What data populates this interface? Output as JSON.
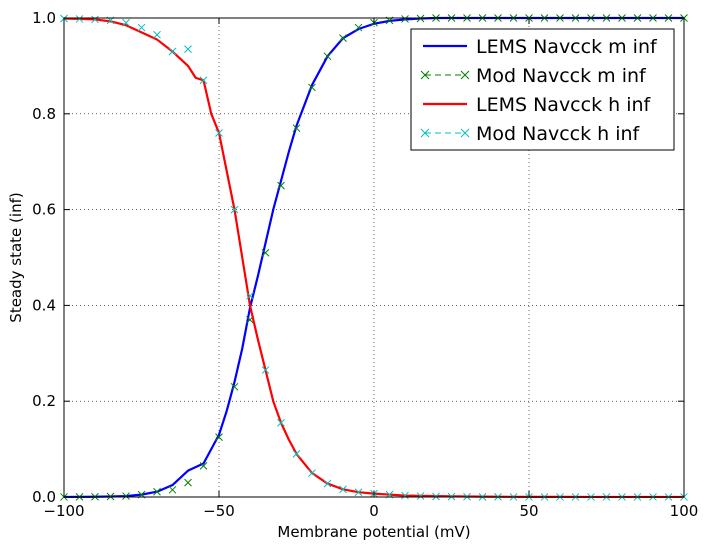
{
  "chart_data": {
    "type": "line",
    "xlabel": "Membrane potential (mV)",
    "ylabel": "Steady state (inf)",
    "xlim": [
      -100,
      100
    ],
    "ylim": [
      0,
      1
    ],
    "xticks": [
      -100,
      -50,
      0,
      50,
      100
    ],
    "xtick_labels": [
      "−100",
      "−50",
      "0",
      "50",
      "100"
    ],
    "yticks": [
      0,
      0.2,
      0.4,
      0.6,
      0.8,
      1.0
    ],
    "ytick_labels": [
      "0.0",
      "0.2",
      "0.4",
      "0.6",
      "0.8",
      "1.0"
    ],
    "grid": true,
    "legend_position": "top-right",
    "series": [
      {
        "name": "LEMS Navcck m inf",
        "style": "line",
        "color": "#0000ff",
        "x": [
          -100,
          -95,
          -90,
          -85,
          -80,
          -75,
          -70,
          -65,
          -60,
          -55,
          -50,
          -47.5,
          -45,
          -42.5,
          -40,
          -37.5,
          -35,
          -32.5,
          -30,
          -27.5,
          -25,
          -20,
          -15,
          -10,
          -5,
          0,
          5,
          10,
          15,
          20,
          30,
          40,
          50,
          60,
          70,
          80,
          90,
          100
        ],
        "y": [
          0.0001,
          0.0002,
          0.0005,
          0.001,
          0.002,
          0.005,
          0.011,
          0.025,
          0.055,
          0.07,
          0.13,
          0.18,
          0.24,
          0.31,
          0.395,
          0.46,
          0.53,
          0.6,
          0.66,
          0.72,
          0.775,
          0.86,
          0.92,
          0.958,
          0.977,
          0.988,
          0.994,
          0.997,
          0.999,
          1.0,
          1.0,
          1.0,
          1.0,
          1.0,
          1.0,
          1.0,
          1.0,
          1.0
        ]
      },
      {
        "name": "Mod Navcck m inf",
        "style": "markers",
        "marker": "x",
        "color": "#008000",
        "x": [
          -100,
          -95,
          -90,
          -85,
          -80,
          -75,
          -70,
          -65,
          -60,
          -55,
          -50,
          -45,
          -40,
          -35,
          -30,
          -25,
          -20,
          -15,
          -10,
          -5,
          0,
          5,
          10,
          15,
          20,
          25,
          30,
          35,
          40,
          45,
          50,
          55,
          60,
          65,
          70,
          75,
          80,
          85,
          90,
          95,
          100
        ],
        "y": [
          0.0001,
          0.0002,
          0.0005,
          0.001,
          0.002,
          0.005,
          0.011,
          0.015,
          0.03,
          0.065,
          0.125,
          0.23,
          0.37,
          0.51,
          0.65,
          0.77,
          0.855,
          0.92,
          0.958,
          0.98,
          0.99,
          0.995,
          0.998,
          0.999,
          1.0,
          1.0,
          1.0,
          1.0,
          1.0,
          1.0,
          1.0,
          1.0,
          1.0,
          1.0,
          1.0,
          1.0,
          1.0,
          1.0,
          1.0,
          1.0,
          1.0
        ]
      },
      {
        "name": "LEMS Navcck h inf",
        "style": "line",
        "color": "#ff0000",
        "x": [
          -100,
          -95,
          -90,
          -85,
          -80,
          -75,
          -70,
          -65,
          -60,
          -57.5,
          -55,
          -52.5,
          -50,
          -47.5,
          -45,
          -42.5,
          -40,
          -37.5,
          -35,
          -32.5,
          -30,
          -27.5,
          -25,
          -20,
          -15,
          -10,
          -5,
          0,
          5,
          10,
          20,
          30,
          40,
          50,
          60,
          70,
          80,
          90,
          100
        ],
        "y": [
          0.999,
          0.998,
          0.997,
          0.993,
          0.985,
          0.97,
          0.955,
          0.93,
          0.9,
          0.875,
          0.87,
          0.8,
          0.76,
          0.68,
          0.6,
          0.5,
          0.4,
          0.33,
          0.265,
          0.2,
          0.155,
          0.12,
          0.09,
          0.05,
          0.028,
          0.016,
          0.01,
          0.007,
          0.005,
          0.003,
          0.002,
          0.001,
          0.0005,
          0.0003,
          0.0002,
          0.0001,
          0.0001,
          0.0001,
          0.0001
        ]
      },
      {
        "name": "Mod Navcck h inf",
        "style": "markers",
        "marker": "x",
        "color": "#00bfbf",
        "x": [
          -100,
          -95,
          -90,
          -85,
          -80,
          -75,
          -70,
          -65,
          -60,
          -55,
          -50,
          -45,
          -40,
          -35,
          -30,
          -25,
          -20,
          -15,
          -10,
          -5,
          0,
          5,
          10,
          15,
          20,
          25,
          30,
          35,
          40,
          45,
          50,
          55,
          60,
          65,
          70,
          75,
          80,
          85,
          90,
          95,
          100
        ],
        "y": [
          0.999,
          0.998,
          0.997,
          0.995,
          0.99,
          0.98,
          0.965,
          0.93,
          0.935,
          0.87,
          0.76,
          0.6,
          0.42,
          0.265,
          0.155,
          0.09,
          0.05,
          0.028,
          0.016,
          0.01,
          0.007,
          0.005,
          0.003,
          0.002,
          0.001,
          0.0008,
          0.0005,
          0.0003,
          0.0002,
          0.0001,
          0.0001,
          0.0001,
          0.0001,
          0.0001,
          0.0001,
          0.0001,
          0.0001,
          0.0001,
          0.0001,
          0.0001,
          0.0001
        ]
      }
    ]
  }
}
